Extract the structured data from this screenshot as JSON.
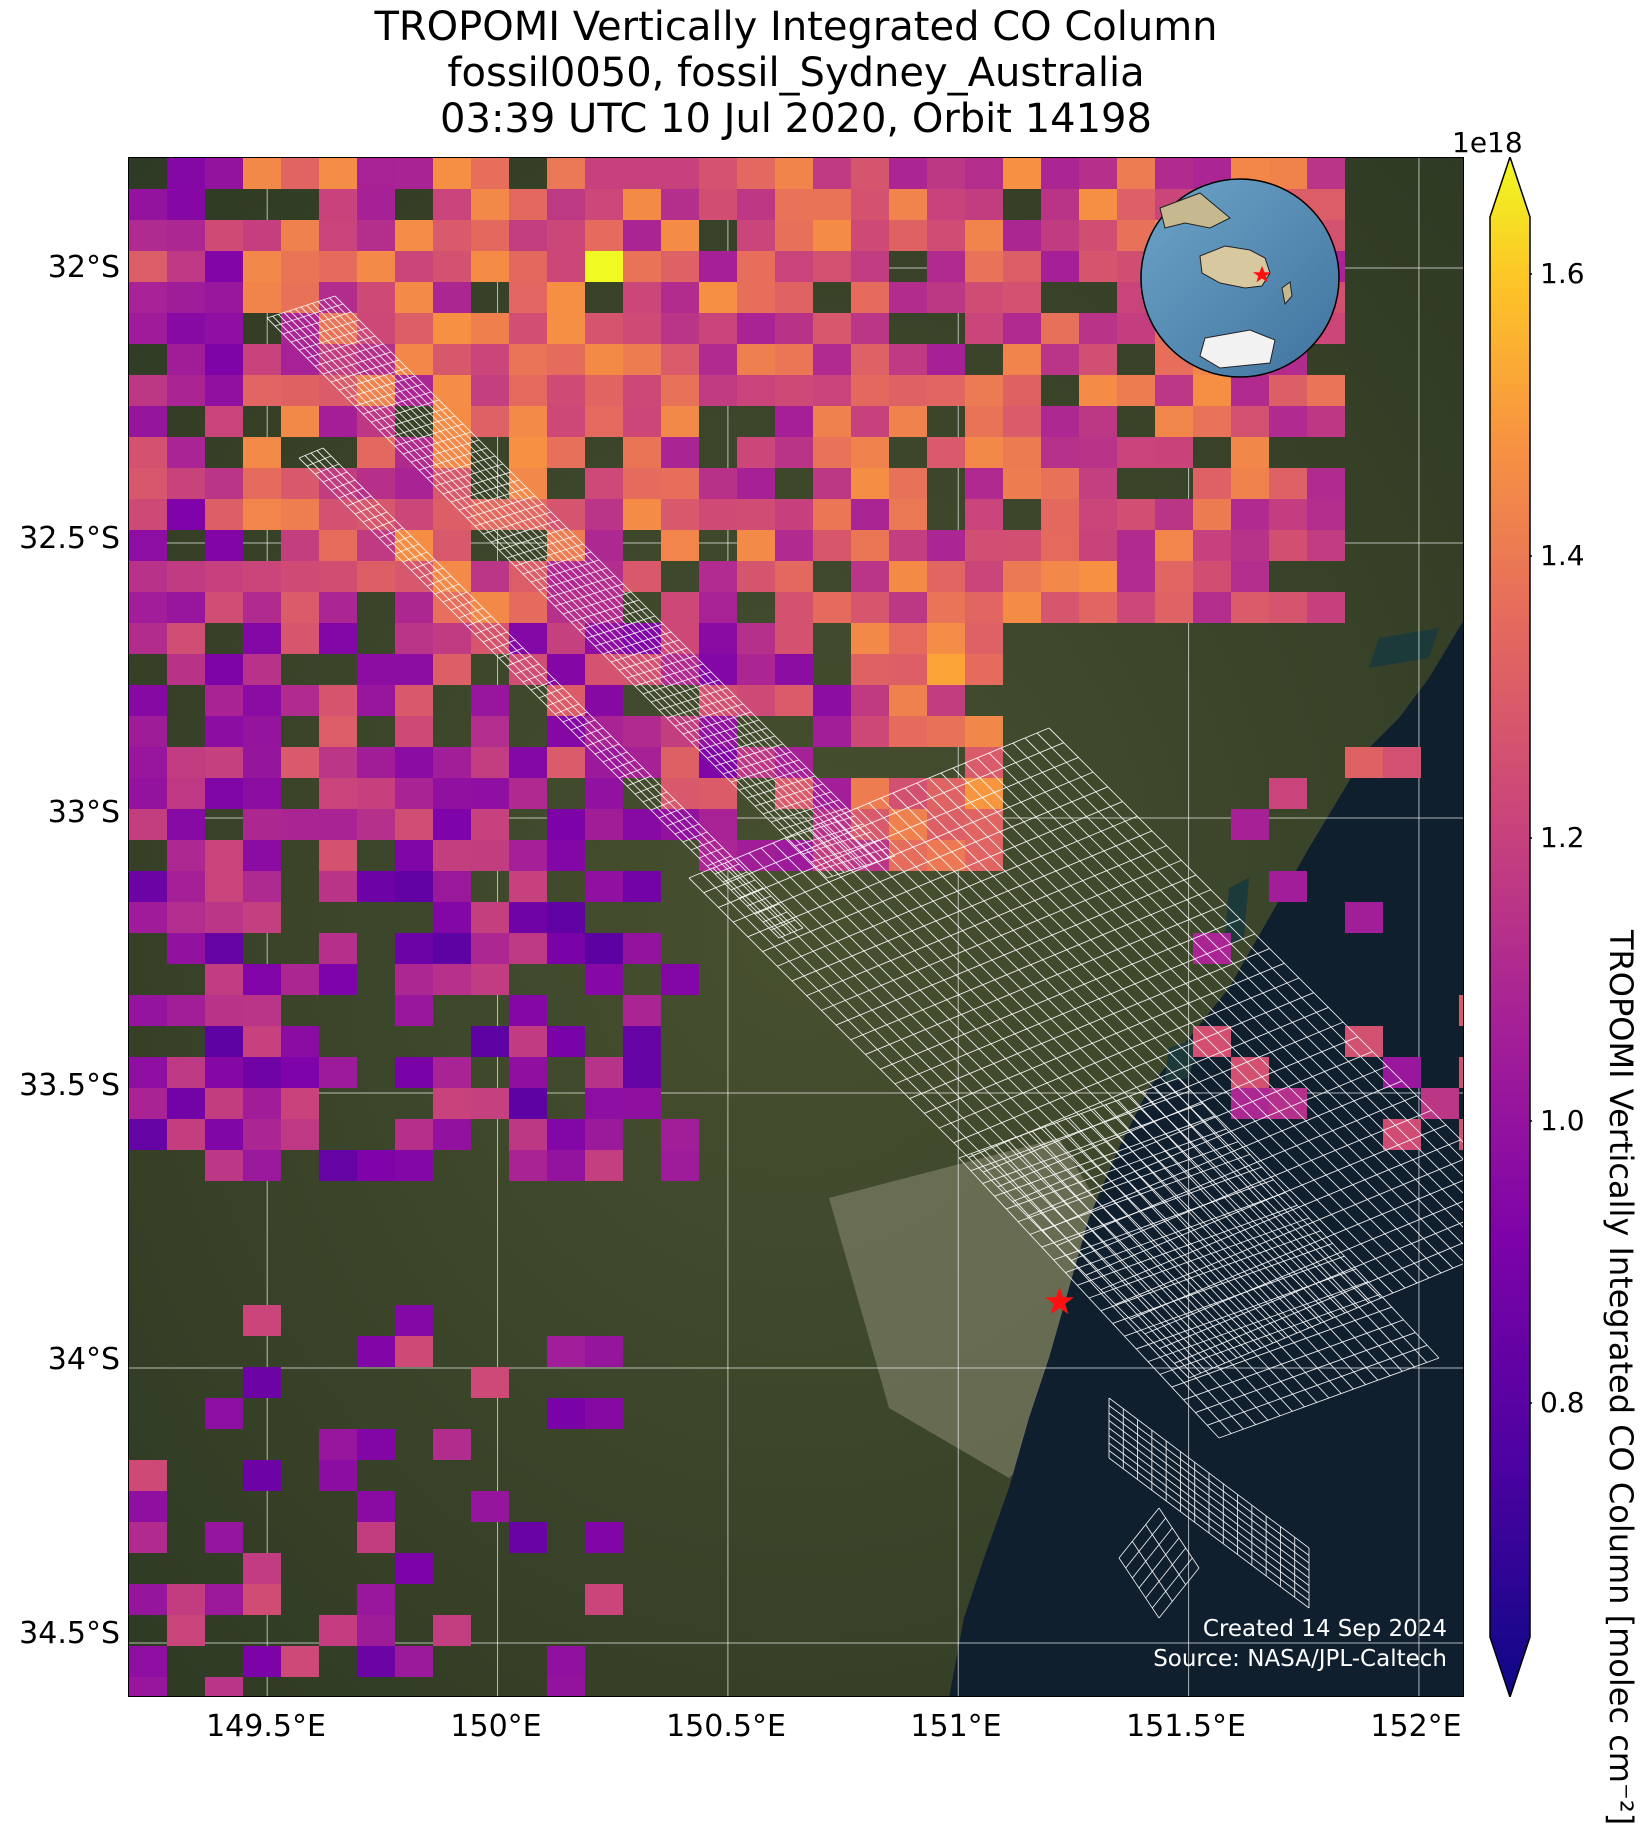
{
  "title": {
    "line1": "TROPOMI Vertically Integrated CO Column",
    "line2": "fossil0050, fossil_Sydney_Australia",
    "line3": "03:39 UTC 10 Jul 2020, Orbit 14198"
  },
  "axes": {
    "lat_ticks": [
      "32°S",
      "32.5°S",
      "33°S",
      "33.5°S",
      "34°S",
      "34.5°S"
    ],
    "lon_ticks": [
      "149.5°E",
      "150°E",
      "150.5°E",
      "151°E",
      "151.5°E",
      "152°E"
    ],
    "lon_range": [
      149.2,
      152.1
    ],
    "lat_range": [
      -34.6,
      -31.8
    ]
  },
  "colorbar": {
    "label": "TROPOMI Vertically Integrated CO Column [molec cm⁻²]",
    "exponent": "1e18",
    "ticks": [
      "0.8",
      "1.0",
      "1.2",
      "1.4",
      "1.6"
    ],
    "colormap": "plasma",
    "extend": "both"
  },
  "credits": {
    "created": "Created 14 Sep 2024",
    "source": "Source: NASA/JPL-Caltech"
  },
  "target": {
    "name": "fossil_Sydney_Australia",
    "lon": 151.22,
    "lat": -33.88,
    "marker": "red-star"
  },
  "colors": {
    "target_marker": "#ff1010",
    "grid": "#ffffff",
    "ocean": "#0f1f2e",
    "land": "#39452b"
  }
}
